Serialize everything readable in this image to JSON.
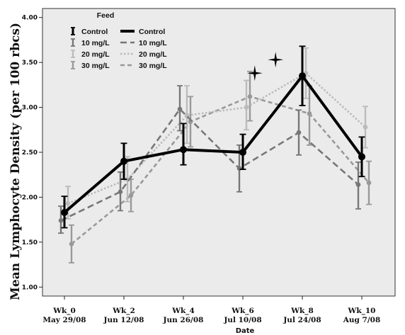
{
  "chart_data": {
    "type": "line",
    "xlabel": "Date",
    "ylabel": "Mean Lymphocyte Density (per 100 rbcs)",
    "ylim": [
      0.9,
      4.1
    ],
    "yticks": [
      "1.00",
      "1.50",
      "2.00",
      "2.50",
      "3.00",
      "3.50",
      "4.00"
    ],
    "categories": [
      [
        "Wk_0",
        "May 29/08"
      ],
      [
        "Wk_2",
        "Jun 12/08"
      ],
      [
        "Wk_4",
        "Jun 26/08"
      ],
      [
        "Wk_6",
        "Jul 10/08"
      ],
      [
        "Wk_8",
        "Jul 24/08"
      ],
      [
        "Wk_10",
        "Aug 7/08"
      ]
    ],
    "legend": {
      "title": "Feed",
      "position": "top-left"
    },
    "series": [
      {
        "name": "Control",
        "color": "#000000",
        "dash": "solid",
        "offset": 0,
        "x": [
          0,
          1,
          2,
          3,
          4,
          5
        ],
        "values": [
          1.83,
          2.4,
          2.53,
          2.5,
          3.35,
          2.45
        ],
        "lower": [
          1.66,
          2.2,
          2.36,
          2.31,
          3.02,
          2.23
        ],
        "upper": [
          2.01,
          2.6,
          2.82,
          2.7,
          3.68,
          2.67
        ]
      },
      {
        "name": "10 mg/L",
        "color": "#777777",
        "dash": "long-dash",
        "offset": -1,
        "x": [
          0,
          1,
          2,
          3,
          4,
          5
        ],
        "values": [
          1.74,
          2.06,
          2.98,
          2.32,
          2.72,
          2.14
        ],
        "lower": [
          1.6,
          1.85,
          2.74,
          2.06,
          2.47,
          1.87
        ],
        "upper": [
          1.9,
          2.28,
          3.24,
          2.58,
          2.97,
          2.39
        ]
      },
      {
        "name": "20 mg/L",
        "color": "#bbbbbb",
        "dash": "dotted",
        "offset": 1,
        "x": [
          0,
          1,
          2,
          3,
          4,
          5
        ],
        "values": [
          1.93,
          2.2,
          2.91,
          3.0,
          3.38,
          2.78
        ],
        "lower": [
          1.76,
          1.95,
          2.6,
          2.75,
          3.1,
          2.55
        ],
        "upper": [
          2.12,
          2.45,
          3.24,
          3.3,
          3.66,
          3.01
        ]
      },
      {
        "name": "30 mg/L",
        "color": "#999999",
        "dash": "short-dash",
        "offset": 2,
        "x": [
          0,
          1,
          2,
          3,
          4,
          5
        ],
        "values": [
          1.48,
          2.02,
          2.84,
          3.12,
          2.93,
          2.16
        ],
        "lower": [
          1.27,
          1.84,
          2.56,
          2.85,
          2.58,
          1.92
        ],
        "upper": [
          1.69,
          2.2,
          3.12,
          3.4,
          3.24,
          2.4
        ]
      }
    ],
    "annotations": [
      {
        "type": "four-point-star",
        "x": 3.2,
        "y": 3.38
      },
      {
        "type": "four-point-star",
        "x": 3.55,
        "y": 3.53
      }
    ],
    "grid": false,
    "plot_background": "#ebebeb"
  }
}
